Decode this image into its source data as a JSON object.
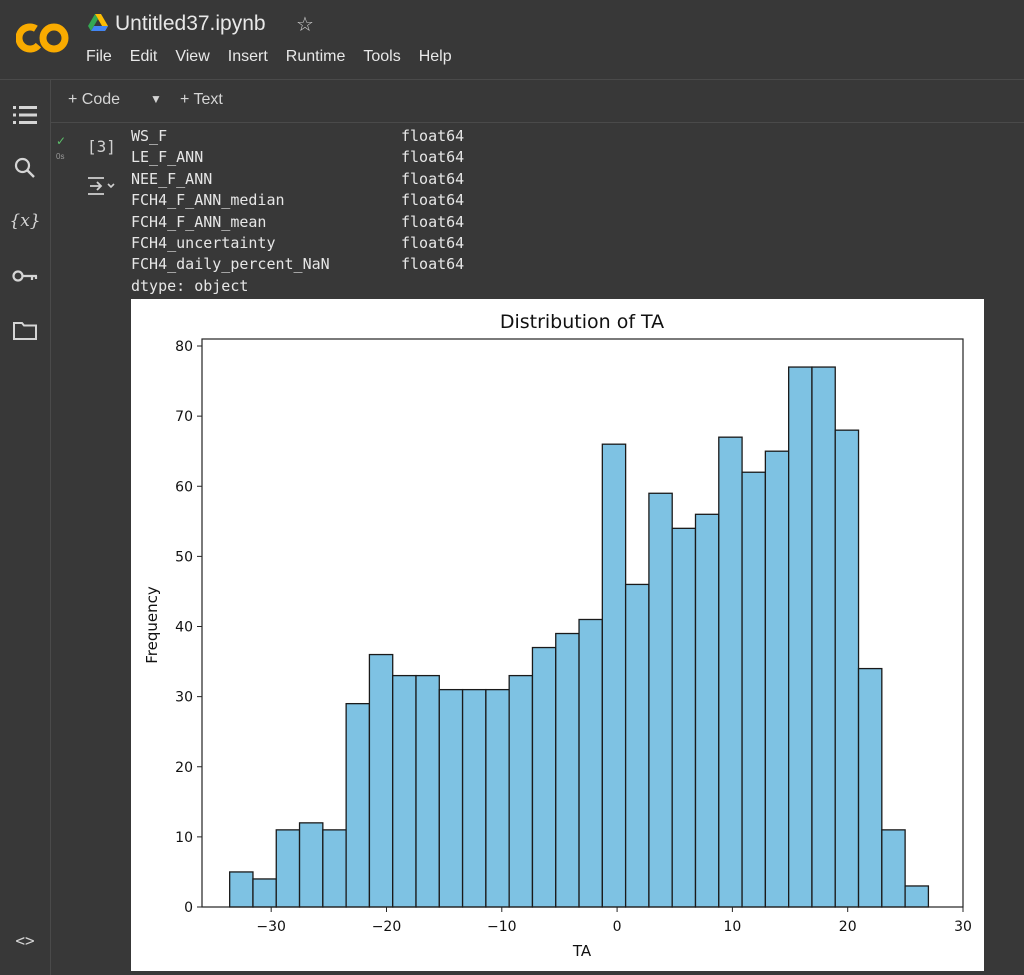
{
  "app": {
    "file_title": "Untitled37.ipynb",
    "menu": [
      "File",
      "Edit",
      "View",
      "Insert",
      "Runtime",
      "Tools",
      "Help"
    ]
  },
  "toolbar": {
    "add_code": "+ Code",
    "add_text": "+ Text"
  },
  "cell": {
    "exec_count": "[3]",
    "status_time": "0s",
    "output_rows": [
      {
        "name": "WS_F",
        "type": "float64"
      },
      {
        "name": "LE_F_ANN",
        "type": "float64"
      },
      {
        "name": "NEE_F_ANN",
        "type": "float64"
      },
      {
        "name": "FCH4_F_ANN_median",
        "type": "float64"
      },
      {
        "name": "FCH4_F_ANN_mean",
        "type": "float64"
      },
      {
        "name": "FCH4_uncertainty",
        "type": "float64"
      },
      {
        "name": "FCH4_daily_percent_NaN",
        "type": "float64"
      }
    ],
    "dtype_line": "dtype: object"
  },
  "icons": {
    "sidebar": [
      "table-of-contents-icon",
      "search-icon",
      "variables-icon",
      "key-icon",
      "folder-icon"
    ],
    "bottom": "code-snippets-icon"
  },
  "colors": {
    "bar_fill": "#7ec2e3",
    "bar_edge": "#1a1a1a",
    "accent_logo_orange": "#f9ab00",
    "check_green": "#5cbf6a"
  },
  "chart_data": {
    "type": "bar",
    "title": "Distribution of TA",
    "xlabel": "TA",
    "ylabel": "Frequency",
    "xlim": [
      -36,
      30
    ],
    "ylim": [
      0,
      81
    ],
    "xticks": [
      -30,
      -20,
      -10,
      0,
      10,
      20,
      30
    ],
    "yticks": [
      0,
      10,
      20,
      30,
      40,
      50,
      60,
      70,
      80
    ],
    "bin_start": -33.6,
    "bin_width": 2.02,
    "values": [
      5,
      4,
      11,
      12,
      11,
      29,
      36,
      33,
      33,
      31,
      31,
      31,
      33,
      37,
      39,
      41,
      66,
      46,
      59,
      54,
      56,
      67,
      62,
      65,
      77,
      77,
      68,
      34,
      11,
      3
    ]
  }
}
